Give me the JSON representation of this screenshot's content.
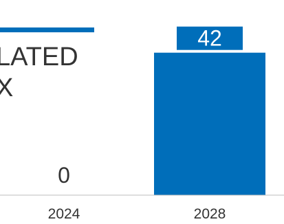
{
  "chart_data": {
    "type": "bar",
    "categories": [
      "2024",
      "2028"
    ],
    "values": [
      0,
      42
    ],
    "data_labels": [
      "0",
      "42"
    ],
    "title_fragment": [
      "LATED",
      "X"
    ],
    "xlabel": "",
    "ylabel": "",
    "ylim": [
      0,
      47
    ],
    "grid": false,
    "legend": "none",
    "colors": {
      "bar": "#006EBA",
      "label_box": "#006EBA",
      "label_box_text": "#FFFFFF",
      "text": "#333333",
      "axis": "#BDBDBD"
    }
  }
}
